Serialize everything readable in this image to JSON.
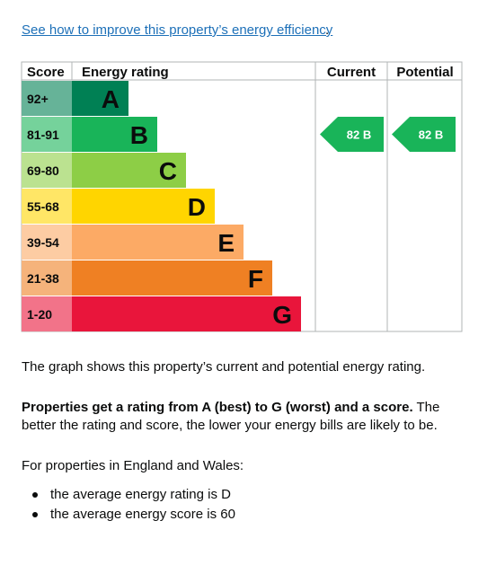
{
  "link": {
    "text": "See how to improve this property’s energy efficiency",
    "trailing": "."
  },
  "chart_data": {
    "type": "table",
    "headers": {
      "score": "Score",
      "rating": "Energy rating",
      "current": "Current",
      "potential": "Potential"
    },
    "bands": [
      {
        "score": "92+",
        "letter": "A",
        "color": "#008054",
        "score_bg": "#66b398"
      },
      {
        "score": "81-91",
        "letter": "B",
        "color": "#19b459",
        "score_bg": "#75d29b"
      },
      {
        "score": "69-80",
        "letter": "C",
        "color": "#8dce46",
        "score_bg": "#bbe290"
      },
      {
        "score": "55-68",
        "letter": "D",
        "color": "#ffd500",
        "score_bg": "#ffe666"
      },
      {
        "score": "39-54",
        "letter": "E",
        "color": "#fcaa65",
        "score_bg": "#fdcca3"
      },
      {
        "score": "21-38",
        "letter": "F",
        "color": "#ef8023",
        "score_bg": "#f5b37b"
      },
      {
        "score": "1-20",
        "letter": "G",
        "color": "#e9153b",
        "score_bg": "#f27389"
      }
    ],
    "current": {
      "score": 82,
      "band": "B",
      "label": "82  B"
    },
    "potential": {
      "score": 82,
      "band": "B",
      "label": "82  B"
    }
  },
  "text": {
    "graph_note": "The graph shows this property’s current and potential energy rating.",
    "rating_bold": "Properties get a rating from A (best) to G (worst) and a score.",
    "rating_rest": " The better the rating and score, the lower your energy bills are likely to be.",
    "england_wales": "For properties in England and Wales:",
    "bullets": [
      "the average energy rating is D",
      "the average energy score is 60"
    ]
  }
}
